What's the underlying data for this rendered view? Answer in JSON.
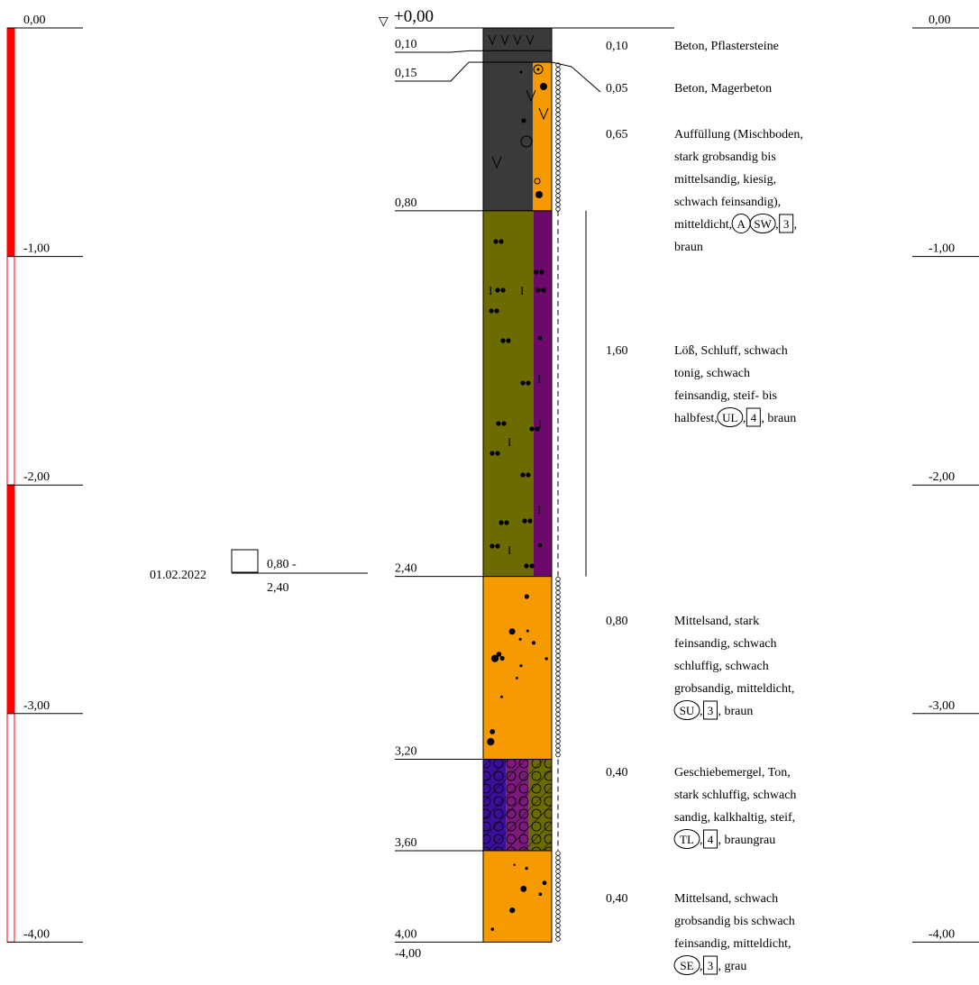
{
  "datum": {
    "text": "+0,00",
    "symbol": "▽"
  },
  "left_scale": {
    "ticks": [
      {
        "label": "0,00",
        "depth": 0
      },
      {
        "label": "-1,00",
        "depth": 1
      },
      {
        "label": "-2,00",
        "depth": 2
      },
      {
        "label": "-3,00",
        "depth": 3
      },
      {
        "label": "-4,00",
        "depth": 4
      }
    ],
    "bar_color": "#ff0000"
  },
  "right_scale": {
    "ticks": [
      {
        "label": "0,00",
        "depth": 0
      },
      {
        "label": "-1,00",
        "depth": 1
      },
      {
        "label": "-2,00",
        "depth": 2
      },
      {
        "label": "-3,00",
        "depth": 3
      },
      {
        "label": "-4,00",
        "depth": 4
      }
    ]
  },
  "boundaries": [
    {
      "label": "0,10",
      "depth": 0.1
    },
    {
      "label": "0,15",
      "depth": 0.15
    },
    {
      "label": "0,80",
      "depth": 0.8
    },
    {
      "label": "2,40",
      "depth": 2.4
    },
    {
      "label": "3,20",
      "depth": 3.2
    },
    {
      "label": "3,60",
      "depth": 3.6
    },
    {
      "label": "4,00",
      "depth": 4.0
    }
  ],
  "final_depth_label": "-4,00",
  "layers": [
    {
      "top": 0.0,
      "bottom": 0.1,
      "thickness": "0,10",
      "colors": [
        "#3a3a3a"
      ],
      "pattern": "concrete",
      "lines": [
        "Beton, Pflastersteine"
      ]
    },
    {
      "top": 0.1,
      "bottom": 0.15,
      "thickness": "0,05",
      "colors": [
        "#3a3a3a"
      ],
      "pattern": "none",
      "lines": [
        "Beton, Magerbeton"
      ]
    },
    {
      "top": 0.15,
      "bottom": 0.8,
      "thickness": "0,65",
      "colors": [
        "#3a3a3a",
        "#f59a00"
      ],
      "pattern": "fill",
      "lines": [
        "Auffüllung (Mischboden,",
        "stark grobsandig bis",
        "mittelsandig, kiesig,",
        "schwach feinsandig),",
        "mitteldicht,{A}{SW},[3],",
        "braun"
      ]
    },
    {
      "top": 0.8,
      "bottom": 2.4,
      "thickness": "1,60",
      "colors": [
        "#6b6b00",
        "#6b0a6b"
      ],
      "pattern": "loess",
      "lines": [
        "Löß, Schluff, schwach",
        "tonig, schwach",
        "feinsandig, steif- bis",
        "halbfest,{UL},[4], braun"
      ]
    },
    {
      "top": 2.4,
      "bottom": 3.2,
      "thickness": "0,80",
      "colors": [
        "#f59a00"
      ],
      "pattern": "sand",
      "lines": [
        "Mittelsand, stark",
        "feinsandig, schwach",
        "schluffig, schwach",
        "grobsandig, mitteldicht,",
        "{SU},[3], braun"
      ]
    },
    {
      "top": 3.2,
      "bottom": 3.6,
      "thickness": "0,40",
      "colors": [
        "#3a109a",
        "#7a1a7a",
        "#6b6b00"
      ],
      "pattern": "marl",
      "lines": [
        "Geschiebemergel, Ton,",
        "stark schluffig, schwach",
        "sandig, kalkhaltig, steif,",
        "{TL},[4], braungrau"
      ]
    },
    {
      "top": 3.6,
      "bottom": 4.0,
      "thickness": "0,40",
      "colors": [
        "#f59a00"
      ],
      "pattern": "sand",
      "lines": [
        "Mittelsand, schwach",
        "grobsandig bis schwach",
        "feinsandig, mitteldicht,",
        "{SE},[3], grau"
      ]
    }
  ],
  "sample": {
    "date": "01.02.2022",
    "range_top": "0,80 -",
    "range_bottom": "2,40",
    "top": 0.8,
    "bottom": 2.4
  }
}
